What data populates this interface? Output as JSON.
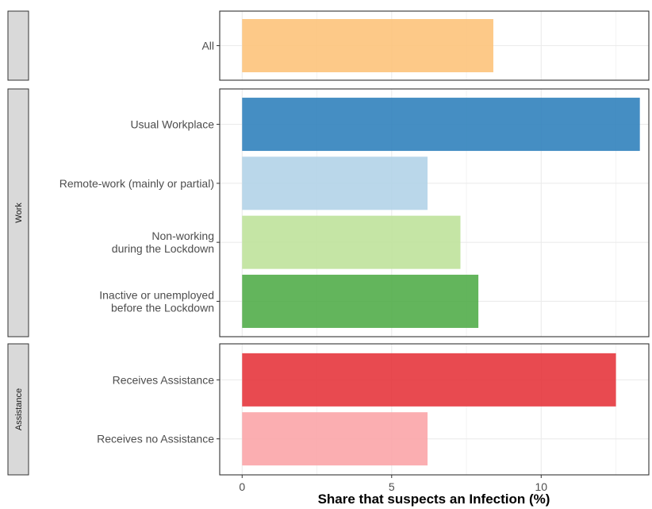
{
  "chart_data": {
    "type": "bar",
    "orientation": "horizontal",
    "xlabel": "Share that suspects an Infection (%)",
    "xlim": [
      -0.75,
      13.6
    ],
    "xticks": [
      0,
      5,
      10
    ],
    "grid": true,
    "panels": [
      {
        "strip": "",
        "bars": [
          {
            "label": [
              "All"
            ],
            "value": 8.4,
            "color": "#fdc37b"
          }
        ]
      },
      {
        "strip": "Work",
        "bars": [
          {
            "label": [
              "Usual Workplace"
            ],
            "value": 13.3,
            "color": "#3182bd"
          },
          {
            "label": [
              "Remote-work (mainly or partial)"
            ],
            "value": 6.2,
            "color": "#b3d3e8"
          },
          {
            "label": [
              "Non-working",
              "during the Lockdown"
            ],
            "value": 7.3,
            "color": "#bfe29b"
          },
          {
            "label": [
              "Inactive or unemployed",
              "before the Lockdown"
            ],
            "value": 7.9,
            "color": "#52ad4a"
          }
        ]
      },
      {
        "strip": "Assistance",
        "bars": [
          {
            "label": [
              "Receives Assistance"
            ],
            "value": 12.5,
            "color": "#e6363d"
          },
          {
            "label": [
              "Receives no Assistance"
            ],
            "value": 6.2,
            "color": "#fba5a8"
          }
        ]
      }
    ]
  }
}
